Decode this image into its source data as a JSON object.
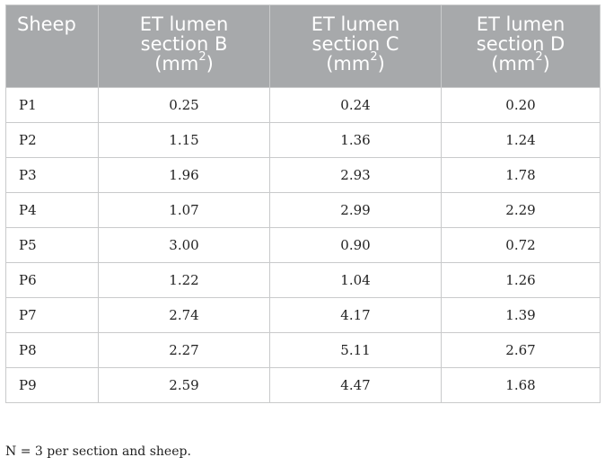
{
  "table": {
    "headers": [
      {
        "line1": "Sheep",
        "line2": "",
        "line3": "",
        "unit_sup": "",
        "line3_end": ""
      },
      {
        "line1": "ET lumen",
        "line2": "section B",
        "line3": "(mm",
        "unit_sup": "2",
        "line3_end": ")"
      },
      {
        "line1": "ET lumen",
        "line2": "section C",
        "line3": "(mm",
        "unit_sup": "2",
        "line3_end": ")"
      },
      {
        "line1": "ET lumen",
        "line2": "section D",
        "line3": "(mm",
        "unit_sup": "2",
        "line3_end": ")"
      }
    ],
    "rows": [
      [
        "P1",
        "0.25",
        "0.24",
        "0.20"
      ],
      [
        "P2",
        "1.15",
        "1.36",
        "1.24"
      ],
      [
        "P3",
        "1.96",
        "2.93",
        "1.78"
      ],
      [
        "P4",
        "1.07",
        "2.99",
        "2.29"
      ],
      [
        "P5",
        "3.00",
        "0.90",
        "0.72"
      ],
      [
        "P6",
        "1.22",
        "1.04",
        "1.26"
      ],
      [
        "P7",
        "2.74",
        "4.17",
        "1.39"
      ],
      [
        "P8",
        "2.27",
        "5.11",
        "2.67"
      ],
      [
        "P9",
        "2.59",
        "4.47",
        "1.68"
      ]
    ]
  },
  "footnote": "N = 3 per section and sheep.",
  "colors": {
    "header_bg": "#a7a9ab",
    "header_text": "#ffffff",
    "grid": "#c9cacb",
    "body_text": "#222222"
  }
}
